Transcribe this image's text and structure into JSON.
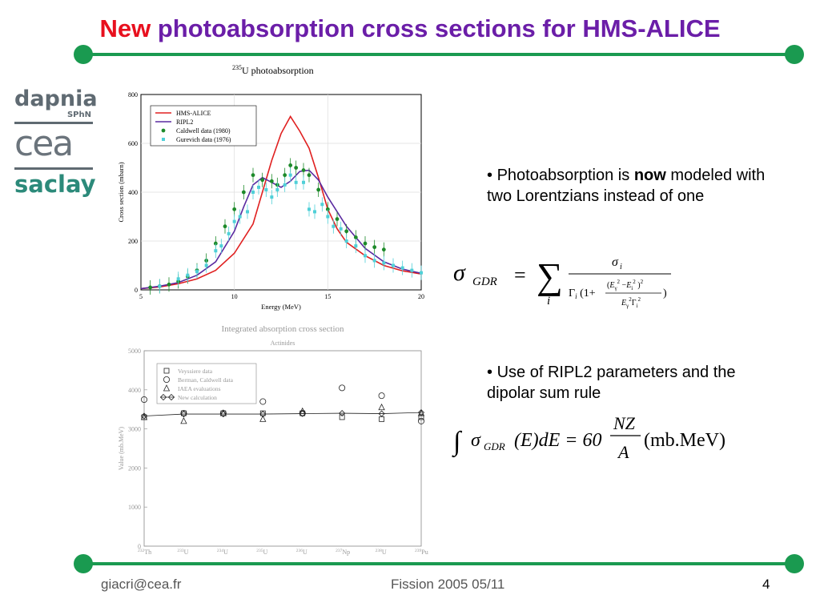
{
  "slide": {
    "title_new": "New",
    "title_rest": " photoabsorption cross sections for HMS-ALICE",
    "logos": {
      "dapnia": "dapnia",
      "sphn": "SPhN",
      "cea": "cea",
      "saclay": "saclay"
    },
    "bullet1": {
      "text": "Photoabsorption is ",
      "bold": "now",
      "rest": " modeled with two Lorentzians instead of one"
    },
    "bullet2": {
      "text": "Use of RIPL2 parameters and the dipolar sum rule"
    },
    "formula1": {
      "lhs_sigma": "σ",
      "lhs_sub": "GDR",
      "eq": "=",
      "sum": "∑",
      "sum_index": "i",
      "num_sigma": "σ",
      "num_sub": "i"
    },
    "formula2": {
      "integral": "∫",
      "text": "σ",
      "sub": "GDR",
      "middle": "(E)dE = 60",
      "frac_num": "NZ",
      "frac_den": "A",
      "unit": "(mb.MeV)"
    },
    "footer": {
      "email": "giacri@cea.fr",
      "center": "Fission 2005 05/11",
      "page": "4"
    },
    "colors": {
      "green": "#1a9a50",
      "title_purple": "#6b1ea8",
      "title_red": "#e8101e",
      "hms": "#e02020",
      "ripl2": "#5a2aa0",
      "caldwell": "#1d8a2a",
      "gurevich": "#4fd0d8"
    }
  },
  "chart_data": [
    {
      "type": "line",
      "title": "235U photoabsorption",
      "title_sup": "235",
      "title_main": "U photoabsorption",
      "xlabel": "Energy (MeV)",
      "ylabel": "Cross section (mbarn)",
      "xlim": [
        5,
        20
      ],
      "ylim": [
        0,
        800
      ],
      "xticks": [
        5,
        10,
        15,
        20
      ],
      "yticks": [
        0,
        200,
        400,
        600,
        800
      ],
      "legend_placement": "top-left",
      "series": [
        {
          "name": "HMS-ALICE",
          "kind": "line",
          "color": "#e02020",
          "x": [
            5,
            6,
            7,
            8,
            9,
            10,
            11,
            11.5,
            12,
            12.5,
            13,
            13.5,
            14,
            14.5,
            15,
            15.5,
            16,
            17,
            18,
            19,
            20
          ],
          "y": [
            5,
            12,
            25,
            45,
            80,
            150,
            270,
            400,
            530,
            640,
            710,
            650,
            580,
            460,
            330,
            250,
            195,
            140,
            100,
            78,
            65
          ]
        },
        {
          "name": "RIPL2",
          "kind": "line",
          "color": "#5a2aa0",
          "x": [
            5,
            6,
            7,
            8,
            9,
            10,
            10.5,
            11,
            11.5,
            12,
            12.5,
            13,
            13.5,
            14,
            14.5,
            15,
            16,
            17,
            18,
            19,
            20
          ],
          "y": [
            5,
            15,
            30,
            60,
            115,
            240,
            340,
            430,
            460,
            440,
            420,
            445,
            485,
            490,
            450,
            380,
            260,
            170,
            115,
            85,
            68
          ]
        },
        {
          "name": "Caldwell data (1980)",
          "kind": "points",
          "color": "#1d8a2a",
          "x": [
            5.5,
            6,
            6.5,
            7,
            7.5,
            8,
            8.5,
            9,
            9.5,
            10,
            10.5,
            11,
            11.5,
            12,
            12.3,
            12.7,
            13,
            13.3,
            13.7,
            14,
            14.5,
            15,
            15.5,
            16,
            16.5,
            17,
            17.5,
            18
          ],
          "y": [
            10,
            15,
            22,
            35,
            55,
            80,
            120,
            190,
            260,
            330,
            400,
            470,
            450,
            445,
            430,
            470,
            510,
            500,
            490,
            470,
            410,
            330,
            290,
            240,
            215,
            190,
            175,
            165
          ]
        },
        {
          "name": "Gurevich data (1976)",
          "kind": "points",
          "color": "#4fd0d8",
          "x": [
            6,
            7,
            7.5,
            8,
            8.5,
            9,
            9.3,
            9.7,
            10,
            10.3,
            10.7,
            11,
            11.3,
            11.7,
            12,
            12.3,
            12.7,
            13,
            13.3,
            13.7,
            14,
            14.3,
            14.7,
            15,
            15.3,
            15.7,
            16,
            16.5,
            17,
            17.5,
            18,
            18.5,
            19,
            19.5,
            20
          ],
          "y": [
            15,
            45,
            60,
            75,
            100,
            160,
            180,
            230,
            280,
            300,
            320,
            400,
            420,
            410,
            380,
            410,
            430,
            470,
            440,
            440,
            330,
            320,
            350,
            300,
            260,
            250,
            200,
            180,
            140,
            120,
            110,
            100,
            90,
            80,
            70
          ]
        }
      ]
    },
    {
      "type": "scatter",
      "title": "Integrated absorption cross section",
      "subtitle": "Actinides",
      "xlabel": "",
      "ylabel": "Value (mb.MeV)",
      "ylim": [
        0,
        5000
      ],
      "yticks": [
        0,
        1000,
        2000,
        3000,
        4000,
        5000
      ],
      "categories": [
        {
          "sup": "232",
          "sym": "Th"
        },
        {
          "sup": "233",
          "sym": "U"
        },
        {
          "sup": "234",
          "sym": "U"
        },
        {
          "sup": "235",
          "sym": "U"
        },
        {
          "sup": "236",
          "sym": "U"
        },
        {
          "sup": "237",
          "sym": "Np"
        },
        {
          "sup": "238",
          "sym": "U"
        },
        {
          "sup": "239",
          "sym": "Pu"
        }
      ],
      "legend_placement": "top-left",
      "series": [
        {
          "name": "Veyssiere data",
          "marker": "square",
          "values": [
            3300,
            3400,
            3400,
            3400,
            3400,
            3300,
            3250,
            3300
          ]
        },
        {
          "name": "Berman, Caldwell data",
          "marker": "circle",
          "values": [
            3750,
            3400,
            3400,
            3700,
            3400,
            4050,
            3850,
            3200
          ]
        },
        {
          "name": "IAEA evaluations",
          "marker": "triangle",
          "values": [
            3300,
            3200,
            3400,
            3250,
            3450,
            null,
            3550,
            3400
          ]
        },
        {
          "name": "New calculation",
          "marker": "diamond-line",
          "values": [
            3330,
            3380,
            3380,
            3380,
            3390,
            3400,
            3390,
            3420
          ]
        }
      ]
    }
  ]
}
